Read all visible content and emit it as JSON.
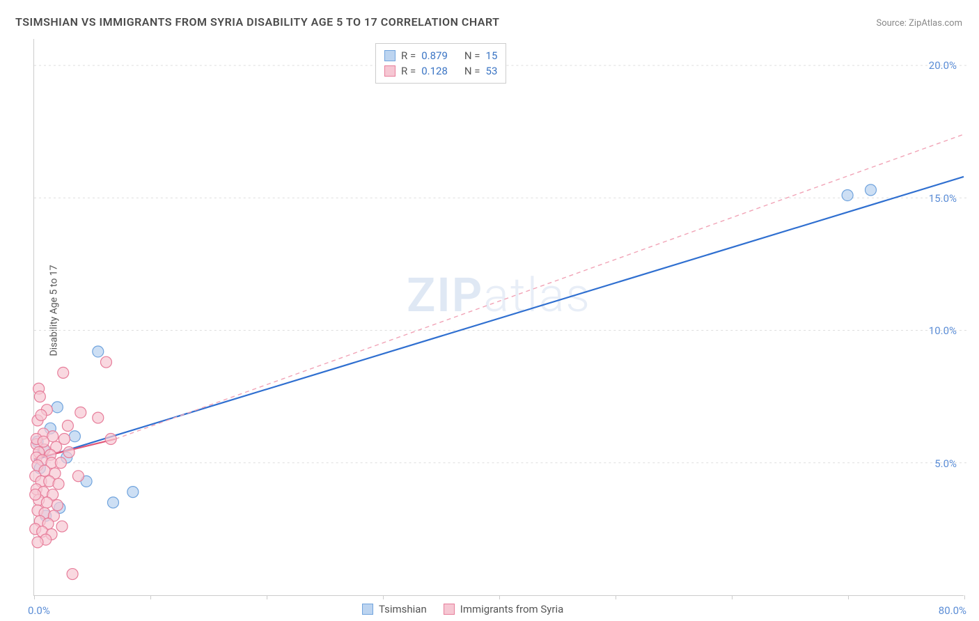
{
  "title": "TSIMSHIAN VS IMMIGRANTS FROM SYRIA DISABILITY AGE 5 TO 17 CORRELATION CHART",
  "source": "Source: ZipAtlas.com",
  "ylabel": "Disability Age 5 to 17",
  "watermark": {
    "zip": "ZIP",
    "atlas": "atlas"
  },
  "chart": {
    "type": "scatter",
    "background_color": "#ffffff",
    "grid_color": "#dddddd",
    "axis_color": "#cccccc",
    "xlim": [
      0,
      80
    ],
    "ylim": [
      0,
      21
    ],
    "x_ticks": [
      0,
      10,
      20,
      30,
      40,
      50,
      60,
      70,
      80
    ],
    "x_tick_labels": {
      "0": "0.0%",
      "80": "80.0%"
    },
    "y_gridlines": [
      5,
      10,
      15,
      20
    ],
    "y_tick_labels": {
      "5": "5.0%",
      "10": "10.0%",
      "15": "15.0%",
      "20": "20.0%"
    },
    "label_color": "#5b8dd6",
    "label_fontsize": 15,
    "title_fontsize": 16,
    "title_color": "#4a4a4a"
  },
  "legend_top": {
    "rows": [
      {
        "swatch_fill": "#bcd4f0",
        "swatch_stroke": "#6fa3dd",
        "r_label": "R =",
        "r_value": "0.879",
        "n_label": "N =",
        "n_value": "15"
      },
      {
        "swatch_fill": "#f6c7d3",
        "swatch_stroke": "#e77d9a",
        "r_label": "R =",
        "r_value": "0.128",
        "n_label": "N =",
        "n_value": "53"
      }
    ],
    "value_color": "#3a74c4",
    "text_color": "#555555"
  },
  "legend_bottom": {
    "items": [
      {
        "swatch_fill": "#bcd4f0",
        "swatch_stroke": "#6fa3dd",
        "label": "Tsimshian"
      },
      {
        "swatch_fill": "#f6c7d3",
        "swatch_stroke": "#e77d9a",
        "label": "Immigrants from Syria"
      }
    ]
  },
  "series": [
    {
      "name": "tsimshian",
      "marker_fill": "#bcd4f0",
      "marker_stroke": "#6fa3dd",
      "marker_opacity": 0.75,
      "marker_radius": 8,
      "trend": {
        "color": "#2f6fd0",
        "width": 2.2,
        "dash": null,
        "x1": 0,
        "y1": 5.1,
        "x2": 80,
        "y2": 15.8
      },
      "trend_ext": null,
      "points": [
        {
          "x": 5.5,
          "y": 9.2
        },
        {
          "x": 2.0,
          "y": 7.1
        },
        {
          "x": 3.5,
          "y": 6.0
        },
        {
          "x": 0.8,
          "y": 5.5
        },
        {
          "x": 4.5,
          "y": 4.3
        },
        {
          "x": 8.5,
          "y": 3.9
        },
        {
          "x": 2.2,
          "y": 3.3
        },
        {
          "x": 6.8,
          "y": 3.5
        },
        {
          "x": 0.5,
          "y": 4.8
        },
        {
          "x": 1.4,
          "y": 6.3
        },
        {
          "x": 2.8,
          "y": 5.2
        },
        {
          "x": 1.0,
          "y": 3.0
        },
        {
          "x": 70.0,
          "y": 15.1
        },
        {
          "x": 72.0,
          "y": 15.3
        },
        {
          "x": 0.3,
          "y": 5.8
        }
      ]
    },
    {
      "name": "syria",
      "marker_fill": "#f6c7d3",
      "marker_stroke": "#e77d9a",
      "marker_opacity": 0.7,
      "marker_radius": 8,
      "trend": {
        "color": "#e05577",
        "width": 2.2,
        "dash": null,
        "x1": 0,
        "y1": 5.15,
        "x2": 7,
        "y2": 5.9
      },
      "trend_ext": {
        "color": "#f1a3b6",
        "width": 1.4,
        "dash": "6 5",
        "x1": 7,
        "y1": 5.9,
        "x2": 80,
        "y2": 17.4
      },
      "points": [
        {
          "x": 2.5,
          "y": 8.4
        },
        {
          "x": 6.2,
          "y": 8.8
        },
        {
          "x": 0.4,
          "y": 7.8
        },
        {
          "x": 1.1,
          "y": 7.0
        },
        {
          "x": 0.3,
          "y": 6.6
        },
        {
          "x": 4.0,
          "y": 6.9
        },
        {
          "x": 5.5,
          "y": 6.7
        },
        {
          "x": 0.8,
          "y": 6.1
        },
        {
          "x": 1.6,
          "y": 6.0
        },
        {
          "x": 2.6,
          "y": 5.9
        },
        {
          "x": 6.6,
          "y": 5.9
        },
        {
          "x": 0.2,
          "y": 5.7
        },
        {
          "x": 0.9,
          "y": 5.5
        },
        {
          "x": 1.9,
          "y": 5.6
        },
        {
          "x": 0.4,
          "y": 5.4
        },
        {
          "x": 1.4,
          "y": 5.3
        },
        {
          "x": 3.0,
          "y": 5.4
        },
        {
          "x": 0.2,
          "y": 5.2
        },
        {
          "x": 0.7,
          "y": 5.1
        },
        {
          "x": 1.5,
          "y": 5.0
        },
        {
          "x": 2.3,
          "y": 5.0
        },
        {
          "x": 0.3,
          "y": 4.9
        },
        {
          "x": 0.9,
          "y": 4.7
        },
        {
          "x": 1.8,
          "y": 4.6
        },
        {
          "x": 0.1,
          "y": 4.5
        },
        {
          "x": 0.6,
          "y": 4.3
        },
        {
          "x": 1.3,
          "y": 4.3
        },
        {
          "x": 2.1,
          "y": 4.2
        },
        {
          "x": 0.2,
          "y": 4.0
        },
        {
          "x": 0.8,
          "y": 3.9
        },
        {
          "x": 1.6,
          "y": 3.8
        },
        {
          "x": 0.4,
          "y": 3.6
        },
        {
          "x": 1.1,
          "y": 3.5
        },
        {
          "x": 2.0,
          "y": 3.4
        },
        {
          "x": 0.3,
          "y": 3.2
        },
        {
          "x": 0.9,
          "y": 3.1
        },
        {
          "x": 1.7,
          "y": 3.0
        },
        {
          "x": 0.5,
          "y": 2.8
        },
        {
          "x": 1.2,
          "y": 2.7
        },
        {
          "x": 2.4,
          "y": 2.6
        },
        {
          "x": 0.1,
          "y": 2.5
        },
        {
          "x": 0.7,
          "y": 2.4
        },
        {
          "x": 1.5,
          "y": 2.3
        },
        {
          "x": 3.3,
          "y": 0.8
        },
        {
          "x": 0.2,
          "y": 5.9
        },
        {
          "x": 3.8,
          "y": 4.5
        },
        {
          "x": 0.6,
          "y": 6.8
        },
        {
          "x": 2.9,
          "y": 6.4
        },
        {
          "x": 0.1,
          "y": 3.8
        },
        {
          "x": 0.5,
          "y": 7.5
        },
        {
          "x": 1.0,
          "y": 2.1
        },
        {
          "x": 0.3,
          "y": 2.0
        },
        {
          "x": 0.8,
          "y": 5.8
        }
      ]
    }
  ]
}
